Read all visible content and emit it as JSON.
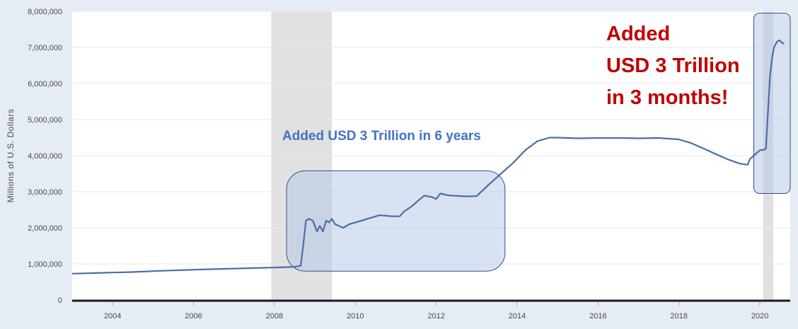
{
  "chart_data": {
    "type": "line",
    "title": "",
    "xlabel": "",
    "ylabel": "Millions of U.S. Dollars",
    "xlim": [
      2003.0,
      2020.75
    ],
    "ylim": [
      0,
      8000000
    ],
    "x_ticks": [
      2004,
      2006,
      2008,
      2010,
      2012,
      2014,
      2016,
      2018,
      2020
    ],
    "y_ticks": [
      0,
      1000000,
      2000000,
      3000000,
      4000000,
      5000000,
      6000000,
      7000000,
      8000000
    ],
    "y_tick_labels": [
      "0",
      "1,000,000",
      "2,000,000",
      "3,000,000",
      "4,000,000",
      "5,000,000",
      "6,000,000",
      "7,000,000",
      "8,000,000"
    ],
    "recessions": [
      [
        2007.92,
        2009.42
      ],
      [
        2020.08,
        2020.33
      ]
    ],
    "series": [
      {
        "color": "#4a6fa5",
        "x": [
          2003.0,
          2003.5,
          2004.0,
          2004.5,
          2005.0,
          2005.5,
          2006.0,
          2006.5,
          2007.0,
          2007.5,
          2008.0,
          2008.5,
          2008.65,
          2008.72,
          2008.78,
          2008.85,
          2008.95,
          2009.05,
          2009.12,
          2009.2,
          2009.28,
          2009.35,
          2009.42,
          2009.5,
          2009.6,
          2009.7,
          2009.85,
          2010.0,
          2010.3,
          2010.6,
          2010.9,
          2011.1,
          2011.2,
          2011.4,
          2011.55,
          2011.7,
          2011.9,
          2012.0,
          2012.1,
          2012.3,
          2012.6,
          2012.8,
          2013.0,
          2013.3,
          2013.6,
          2013.9,
          2014.2,
          2014.5,
          2014.8,
          2015.0,
          2015.5,
          2016.0,
          2016.5,
          2017.0,
          2017.5,
          2018.0,
          2018.3,
          2018.6,
          2018.9,
          2019.2,
          2019.5,
          2019.7,
          2019.75,
          2019.85,
          2020.0,
          2020.1,
          2020.15,
          2020.2,
          2020.25,
          2020.3,
          2020.35,
          2020.42,
          2020.48,
          2020.55,
          2020.6
        ],
        "y": [
          730000,
          745000,
          760000,
          775000,
          800000,
          820000,
          840000,
          855000,
          870000,
          885000,
          900000,
          920000,
          950000,
          1600000,
          2200000,
          2250000,
          2200000,
          1900000,
          2050000,
          1900000,
          2200000,
          2150000,
          2250000,
          2100000,
          2050000,
          2000000,
          2100000,
          2150000,
          2250000,
          2350000,
          2320000,
          2320000,
          2450000,
          2600000,
          2750000,
          2890000,
          2850000,
          2800000,
          2950000,
          2900000,
          2880000,
          2870000,
          2880000,
          3200000,
          3500000,
          3800000,
          4150000,
          4400000,
          4500000,
          4500000,
          4480000,
          4490000,
          4490000,
          4480000,
          4490000,
          4450000,
          4350000,
          4200000,
          4050000,
          3900000,
          3780000,
          3750000,
          3900000,
          4000000,
          4150000,
          4160000,
          4200000,
          5200000,
          6200000,
          6700000,
          7000000,
          7150000,
          7200000,
          7130000,
          7100000
        ]
      }
    ],
    "annotations": {
      "box_left_label": "Added USD 3 Trillion in 6 years",
      "box_right_lines": [
        "Added",
        "USD 3 Trillion",
        "in 3 months!"
      ]
    }
  }
}
